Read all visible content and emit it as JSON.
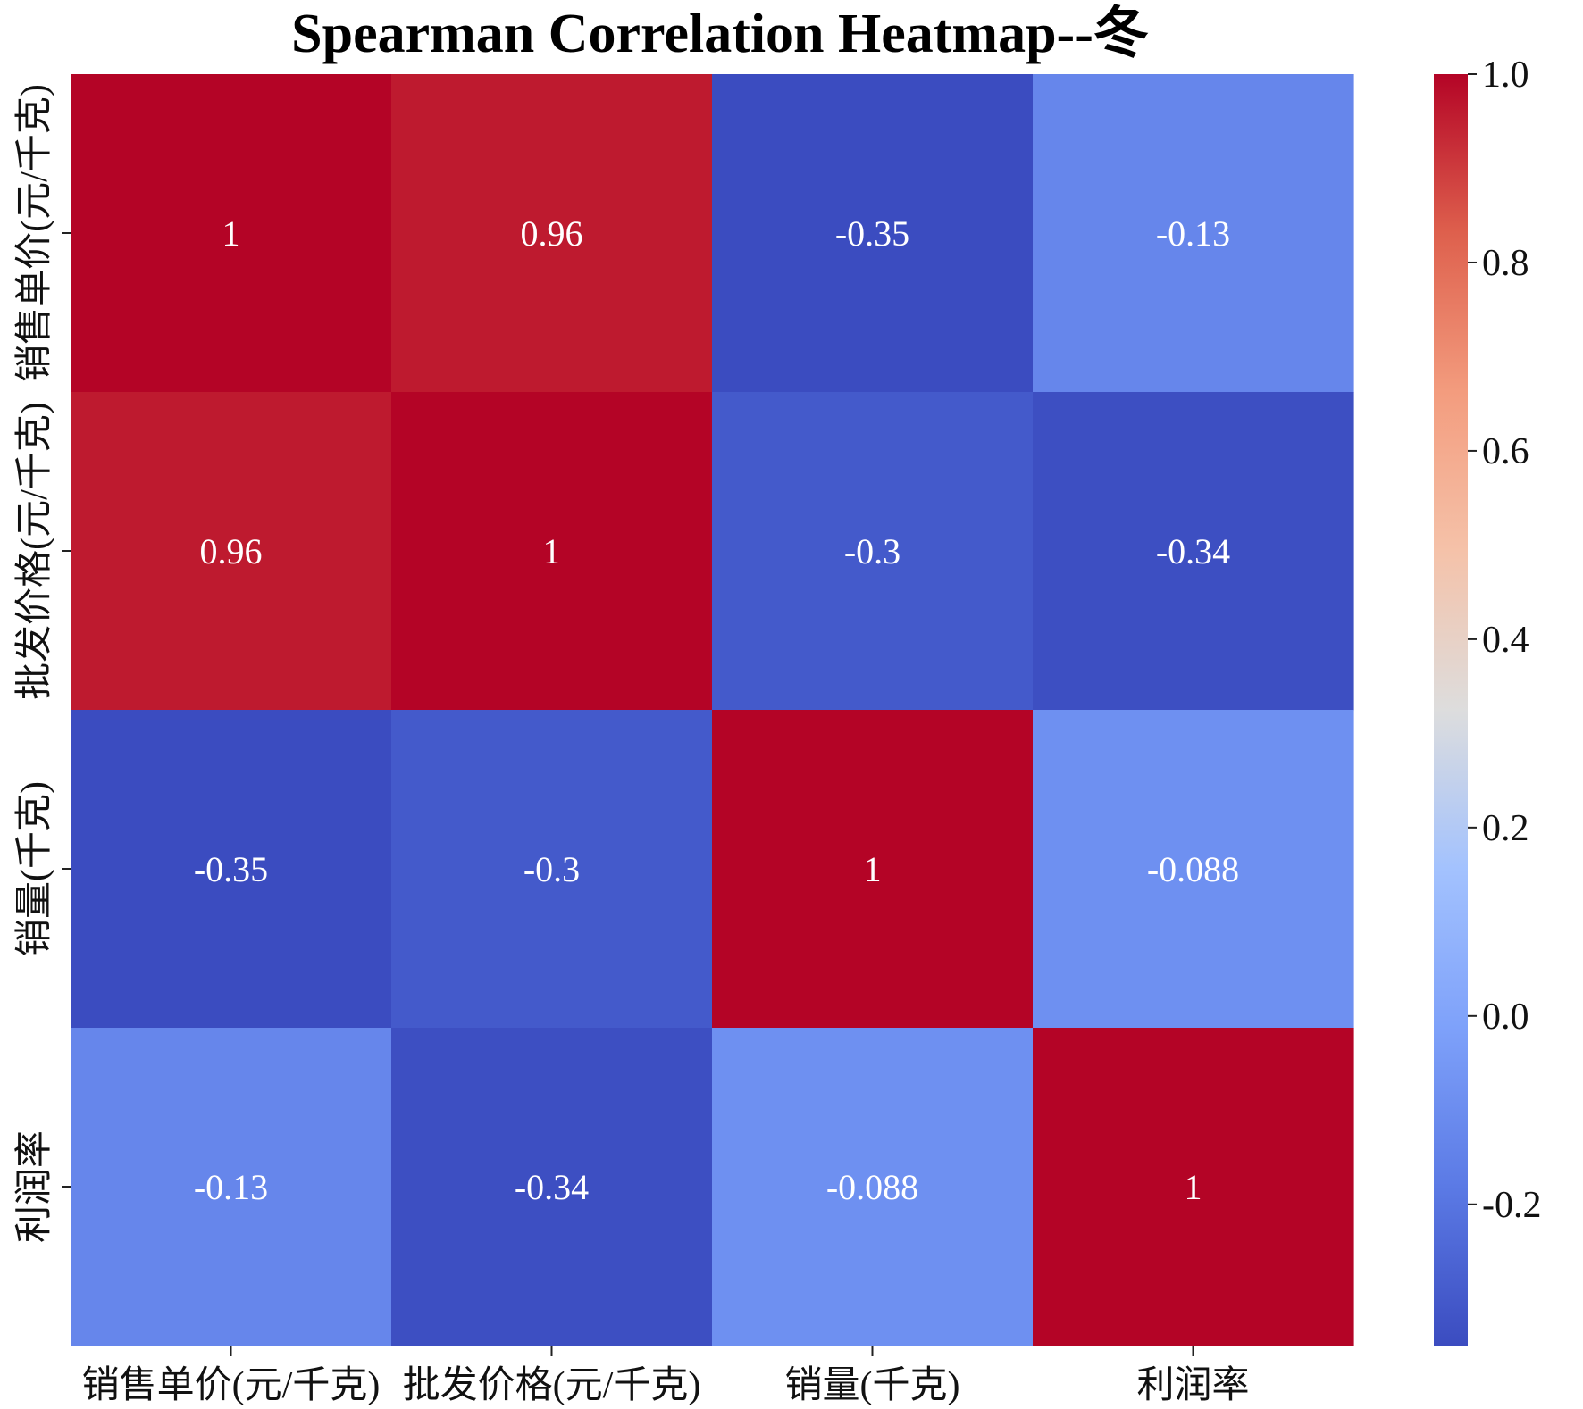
{
  "chart_data": {
    "type": "heatmap",
    "title": "Spearman Correlation Heatmap--冬",
    "row_labels": [
      "销售单价(元/千克)",
      "批发价格(元/千克)",
      "销量(千克)",
      "利润率"
    ],
    "col_labels": [
      "销售单价(元/千克)",
      "批发价格(元/千克)",
      "销量(千克)",
      "利润率"
    ],
    "values": [
      [
        1,
        0.96,
        -0.35,
        -0.13
      ],
      [
        0.96,
        1,
        -0.3,
        -0.34
      ],
      [
        -0.35,
        -0.3,
        1,
        -0.088
      ],
      [
        -0.13,
        -0.34,
        -0.088,
        1
      ]
    ],
    "annotations": [
      [
        "1",
        "0.96",
        "-0.35",
        "-0.13"
      ],
      [
        "0.96",
        "1",
        "-0.3",
        "-0.34"
      ],
      [
        "-0.35",
        "-0.3",
        "1",
        "-0.088"
      ],
      [
        "-0.13",
        "-0.34",
        "-0.088",
        "1"
      ]
    ],
    "colormap": "coolwarm",
    "colorbar": {
      "vmin": -0.35,
      "vmax": 1.0,
      "ticks": [
        1.0,
        0.8,
        0.6,
        0.4,
        0.2,
        0.0,
        -0.2
      ],
      "tick_labels": [
        "1.0",
        "0.8",
        "0.6",
        "0.4",
        "0.2",
        "0.0",
        "-0.2"
      ]
    }
  }
}
